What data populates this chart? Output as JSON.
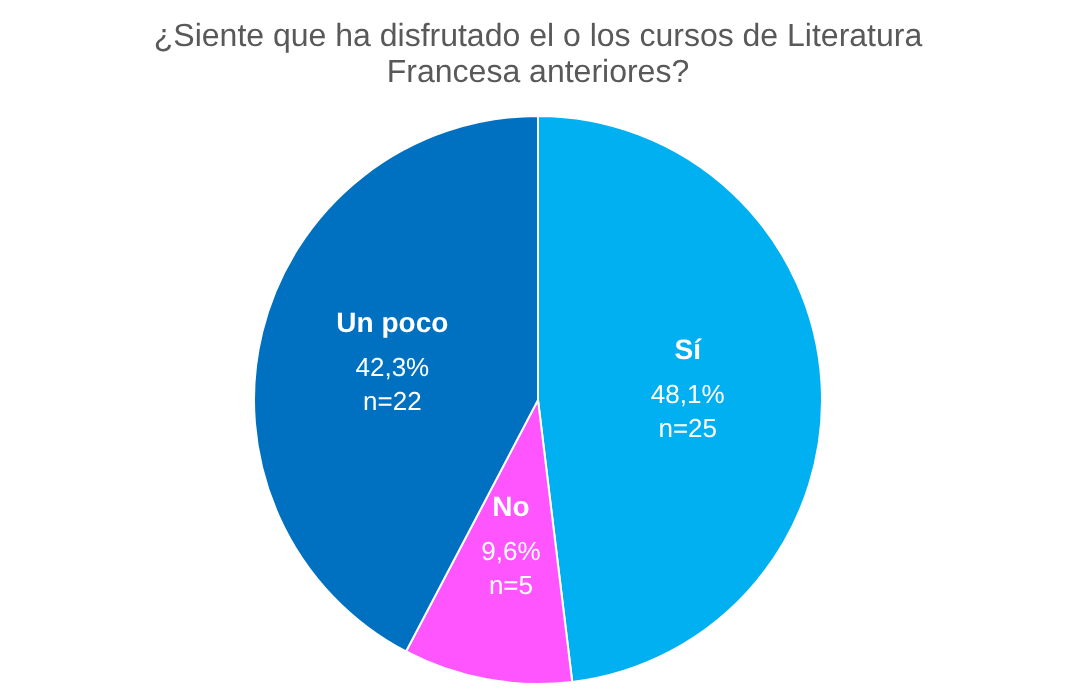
{
  "chart_data": {
    "type": "pie",
    "title": "¿Siente que ha disfrutado el o los cursos de Literatura Francesa anteriores?",
    "categories": [
      "Sí",
      "No",
      "Un poco"
    ],
    "values": [
      25,
      5,
      22
    ],
    "colors": [
      "#00b0f0",
      "#ff55ff",
      "#0070c0"
    ],
    "value_labels": [
      "48,1%\nn=25",
      "9,6%\nn=5",
      "42,3%\nn=22"
    ],
    "legend": false
  }
}
